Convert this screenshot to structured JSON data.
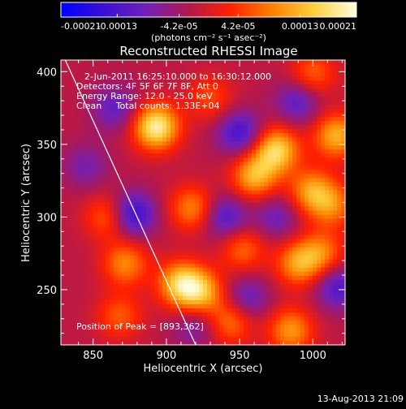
{
  "colorbar": {
    "tick_labels": [
      "-0.00021",
      "-0.00013",
      "-4.2e-05",
      "4.2e-05",
      "0.00013",
      "0.00021"
    ],
    "tick_values": [
      -0.00021,
      -0.00013,
      -4.2e-05,
      4.2e-05,
      0.00013,
      0.00021
    ],
    "range": [
      -0.00021,
      0.00021
    ],
    "units_label": "(photons cm⁻² s⁻¹ asec⁻²)",
    "colors": [
      "#0000ff",
      "#3a0fd6",
      "#7020b8",
      "#b01850",
      "#ff2000",
      "#ff8000",
      "#ffd040",
      "#ffffe0"
    ]
  },
  "chart_data": {
    "type": "heatmap",
    "title": "Reconstructed RHESSI Image",
    "xlabel": "Heliocentric X (arcsec)",
    "ylabel": "Heliocentric Y (arcsec)",
    "xlim": [
      828,
      1022
    ],
    "ylim": [
      212,
      408
    ],
    "xticks": [
      850,
      900,
      950,
      1000
    ],
    "yticks": [
      250,
      300,
      350,
      400
    ],
    "annotations": [
      "2-Jun-2011 16:25:10.000 to 16:30:12.000",
      "Detectors: 4F 5F 6F 7F 8F, Att 0",
      "Energy Range: 12.0 - 25.0 keV",
      "Clean     Total counts: 1.33E+04"
    ],
    "peak_label": "Position of Peak = [893,362]",
    "peak_position": [
      893,
      362
    ],
    "limb_line": [
      [
        831,
        408
      ],
      [
        920,
        212
      ]
    ],
    "sources": [
      {
        "x": 893,
        "y": 362,
        "amp": 1.0
      },
      {
        "x": 975,
        "y": 346,
        "amp": 0.85
      },
      {
        "x": 1016,
        "y": 356,
        "amp": 0.7
      },
      {
        "x": 918,
        "y": 306,
        "amp": 0.55
      },
      {
        "x": 960,
        "y": 328,
        "amp": 0.7
      },
      {
        "x": 999,
        "y": 318,
        "amp": 0.6
      },
      {
        "x": 1013,
        "y": 308,
        "amp": 0.5
      },
      {
        "x": 910,
        "y": 254,
        "amp": 0.8
      },
      {
        "x": 924,
        "y": 248,
        "amp": 0.65
      },
      {
        "x": 872,
        "y": 268,
        "amp": 0.55
      },
      {
        "x": 860,
        "y": 300,
        "amp": 0.45
      },
      {
        "x": 990,
        "y": 268,
        "amp": 0.6
      },
      {
        "x": 1006,
        "y": 275,
        "amp": 0.5
      },
      {
        "x": 952,
        "y": 278,
        "amp": 0.45
      },
      {
        "x": 944,
        "y": 228,
        "amp": 0.5
      },
      {
        "x": 985,
        "y": 222,
        "amp": 0.6
      },
      {
        "x": 868,
        "y": 232,
        "amp": 0.4
      },
      {
        "x": 1000,
        "y": 398,
        "amp": 0.45
      },
      {
        "x": 930,
        "y": 382,
        "amp": 0.35
      },
      {
        "x": 877,
        "y": 302,
        "amp": -0.65
      },
      {
        "x": 950,
        "y": 358,
        "amp": -0.55
      },
      {
        "x": 990,
        "y": 380,
        "amp": -0.45
      },
      {
        "x": 940,
        "y": 300,
        "amp": -0.5
      },
      {
        "x": 1017,
        "y": 252,
        "amp": -0.5
      },
      {
        "x": 865,
        "y": 375,
        "amp": -0.4
      },
      {
        "x": 955,
        "y": 244,
        "amp": -0.4
      },
      {
        "x": 975,
        "y": 300,
        "amp": -0.35
      },
      {
        "x": 845,
        "y": 335,
        "amp": -0.3
      },
      {
        "x": 920,
        "y": 225,
        "amp": -0.3
      }
    ]
  },
  "timestamp": "13-Aug-2013 21:09"
}
